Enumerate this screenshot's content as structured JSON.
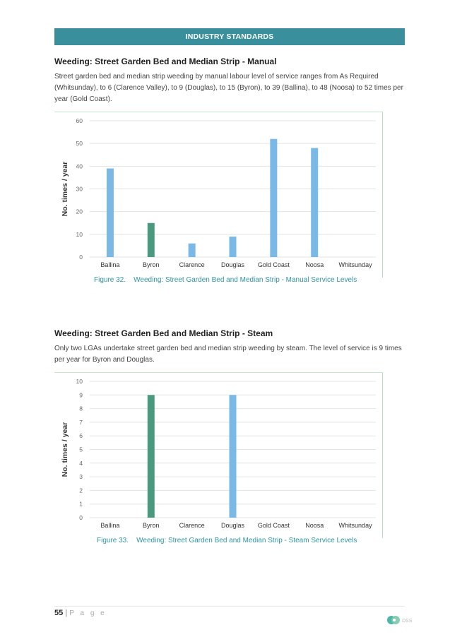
{
  "banner": {
    "title": "INDUSTRY STANDARDS"
  },
  "section1": {
    "heading": "Weeding: Street Garden Bed and Median Strip - Manual",
    "paragraph": "Street garden bed and median strip weeding by manual labour level of service ranges from As Required (Whitsunday), to 6 (Clarence Valley), to 9 (Douglas), to 15 (Byron), to 39 (Ballina), to 48 (Noosa) to 52 times per year (Gold Coast).",
    "caption_num": "Figure 32.",
    "caption_text": "Weeding: Street Garden Bed and Median Strip - Manual Service Levels"
  },
  "section2": {
    "heading": "Weeding: Street Garden Bed and Median Strip - Steam",
    "paragraph": "Only two LGAs undertake street garden bed and median strip weeding by steam. The level of service is 9 times per year for Byron and Douglas.",
    "caption_num": "Figure 33.",
    "caption_text": "Weeding: Street Garden Bed and Median Strip - Steam Service Levels"
  },
  "chart_data": [
    {
      "type": "bar",
      "categories": [
        "Ballina",
        "Byron",
        "Clarence",
        "Douglas",
        "Gold Coast",
        "Noosa",
        "Whitsunday"
      ],
      "values": [
        39,
        15,
        6,
        9,
        52,
        48,
        0
      ],
      "bar_colors": [
        "#7ab8e6",
        "#4a9a80",
        "#7ab8e6",
        "#7ab8e6",
        "#7ab8e6",
        "#7ab8e6",
        "#7ab8e6"
      ],
      "ylabel": "No. times / year",
      "ylim": [
        0,
        60
      ],
      "yticks": [
        0,
        10,
        20,
        30,
        40,
        50,
        60
      ],
      "grid": true
    },
    {
      "type": "bar",
      "categories": [
        "Ballina",
        "Byron",
        "Clarence",
        "Douglas",
        "Gold Coast",
        "Noosa",
        "Whitsunday"
      ],
      "values": [
        0,
        9,
        0,
        9,
        0,
        0,
        0
      ],
      "bar_colors": [
        "#7ab8e6",
        "#4a9a80",
        "#7ab8e6",
        "#7ab8e6",
        "#7ab8e6",
        "#7ab8e6",
        "#7ab8e6"
      ],
      "ylabel": "No. times / year",
      "ylim": [
        0,
        10
      ],
      "yticks": [
        0,
        1,
        2,
        3,
        4,
        5,
        6,
        7,
        8,
        9,
        10
      ],
      "grid": true
    }
  ],
  "footer": {
    "page_number": "55",
    "separator": "|",
    "page_word": "P a g e",
    "logo_text": "DSS"
  }
}
